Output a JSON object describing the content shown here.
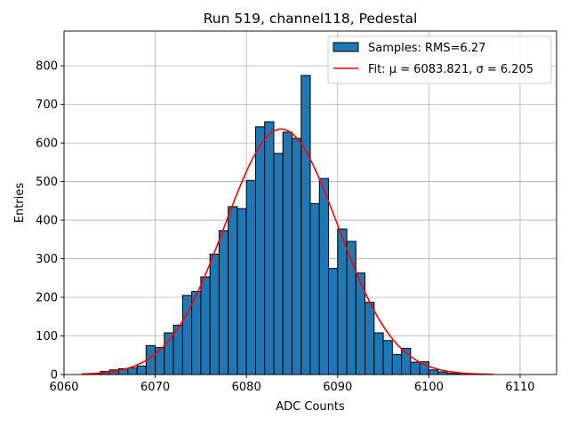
{
  "chart_data": {
    "type": "bar",
    "title": "Run 519, channel118, Pedestal",
    "xlabel": "ADC Counts",
    "ylabel": "Entries",
    "xlim": [
      6060,
      6114
    ],
    "ylim": [
      0,
      890
    ],
    "grid": true,
    "legend_placement": "top-right",
    "xticks": [
      6060,
      6070,
      6080,
      6090,
      6100,
      6110
    ],
    "yticks": [
      0,
      100,
      200,
      300,
      400,
      500,
      600,
      700,
      800
    ],
    "bin_width": 1,
    "series": [
      {
        "name": "Samples: RMS=6.27",
        "kind": "histogram",
        "color": "#1f77b4",
        "edgecolor": "#000000",
        "bin_starts": [
          6062,
          6063,
          6064,
          6065,
          6066,
          6067,
          6068,
          6069,
          6070,
          6071,
          6072,
          6073,
          6074,
          6075,
          6076,
          6077,
          6078,
          6079,
          6080,
          6081,
          6082,
          6083,
          6084,
          6085,
          6086,
          6087,
          6088,
          6089,
          6090,
          6091,
          6092,
          6093,
          6094,
          6095,
          6096,
          6097,
          6098,
          6099,
          6100,
          6101,
          6102,
          6103,
          6104,
          6105,
          6106
        ],
        "values": [
          2,
          3,
          8,
          12,
          15,
          17,
          22,
          75,
          70,
          108,
          128,
          205,
          215,
          253,
          312,
          373,
          435,
          430,
          503,
          642,
          655,
          573,
          628,
          612,
          775,
          443,
          508,
          275,
          377,
          345,
          263,
          187,
          108,
          88,
          52,
          68,
          32,
          33,
          12,
          7,
          3,
          2,
          1,
          1,
          1
        ]
      },
      {
        "name": "Fit: μ = 6083.821, σ = 6.205",
        "kind": "gaussian",
        "color": "#ff0000",
        "mu": 6083.821,
        "sigma": 6.205,
        "amplitude": 636,
        "x_range": [
          6062,
          6107
        ]
      }
    ]
  }
}
